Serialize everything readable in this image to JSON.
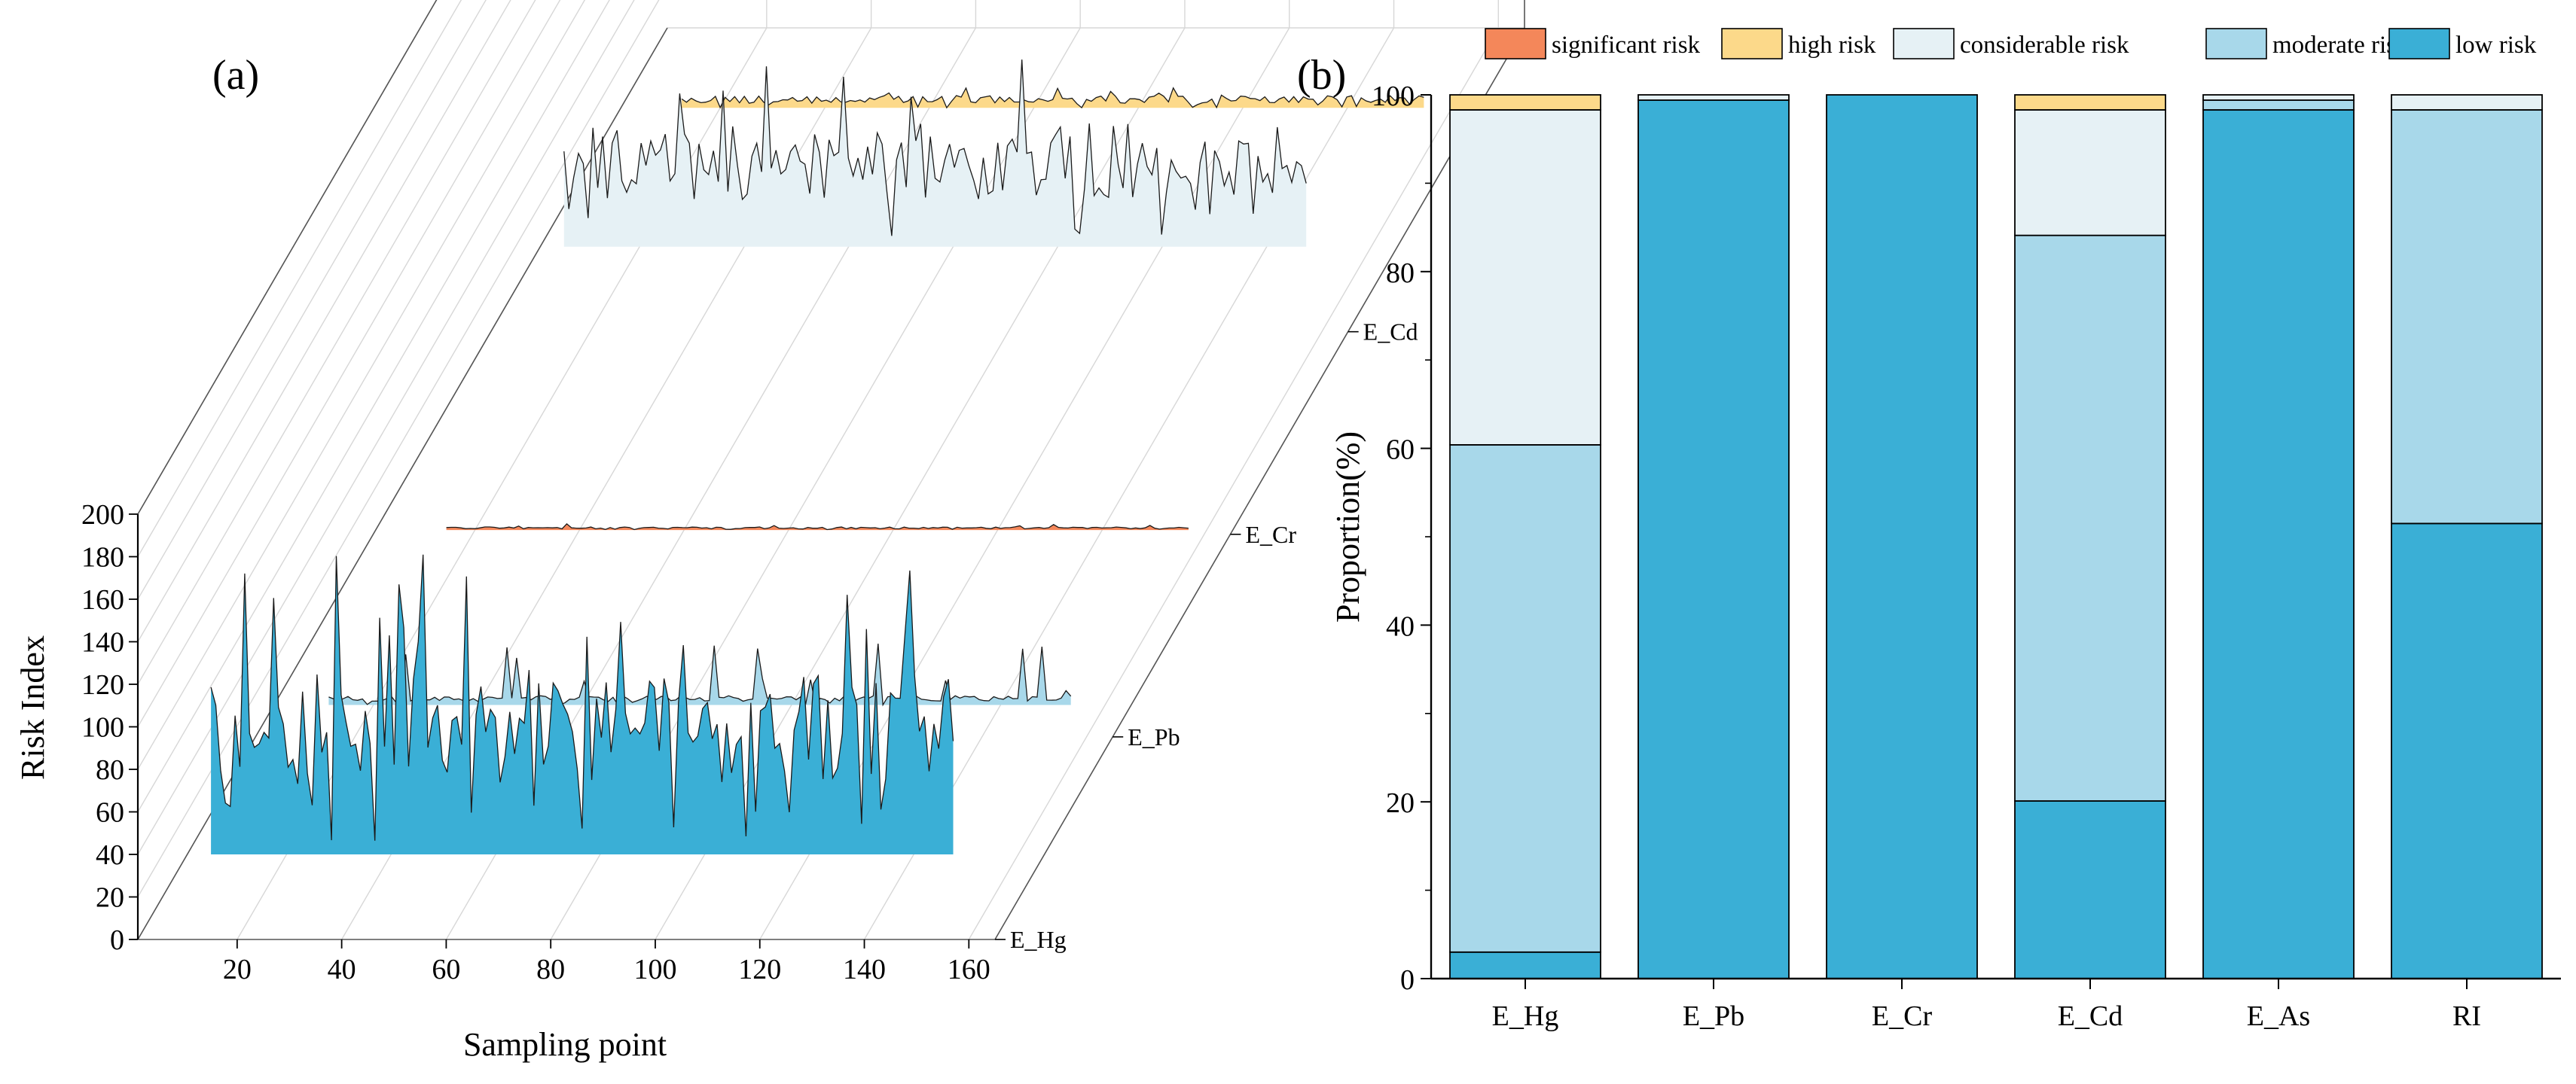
{
  "figure": {
    "panel_a_label": "(a)",
    "panel_b_label": "(b)"
  },
  "chart_data": [
    {
      "type": "area",
      "style": "3d-waterfall",
      "ylabel": "Risk Index",
      "xlabel": "Sampling point",
      "xticks": [
        20,
        40,
        60,
        80,
        100,
        120,
        140,
        160
      ],
      "yticks": [
        0,
        20,
        40,
        60,
        80,
        100,
        120,
        140,
        160,
        180,
        200
      ],
      "xlim": [
        1,
        165
      ],
      "ylim": [
        0,
        200
      ],
      "series": [
        {
          "name": "E_Hg",
          "color": "#3aafd6",
          "n": 155,
          "baseline": 40,
          "typical": 100,
          "max": 185
        },
        {
          "name": "E_Pb",
          "color": "#a8d8ea",
          "n": 155,
          "baseline": 15,
          "typical": 18,
          "max": 45
        },
        {
          "name": "E_Cr",
          "color": "#f4875a",
          "n": 155,
          "baseline": 2,
          "typical": 3,
          "max": 5
        },
        {
          "name": "E_Cd",
          "color": "#e6f1f5",
          "n": 155,
          "baseline": 40,
          "typical": 80,
          "max": 135
        },
        {
          "name": "E_As",
          "color": "#fcd98a",
          "n": 155,
          "baseline": 10,
          "typical": 14,
          "max": 20
        }
      ]
    },
    {
      "type": "bar",
      "stacked": true,
      "ylabel": "Proportion(%)",
      "ylim": [
        0,
        100
      ],
      "yticks": [
        0,
        20,
        40,
        60,
        80,
        100
      ],
      "categories": [
        "E_Hg",
        "E_Pb",
        "E_Cr",
        "E_Cd",
        "E_As",
        "RI"
      ],
      "legend": [
        "significant risk",
        "high risk",
        "considerable risk",
        "moderate risk",
        "low risk"
      ],
      "series": [
        {
          "name": "low risk",
          "color": "#3aafd6",
          "values": [
            3.0,
            99.4,
            100.0,
            20.1,
            98.3,
            51.5
          ]
        },
        {
          "name": "moderate risk",
          "color": "#a8d8ea",
          "values": [
            57.4,
            0.0,
            0.0,
            64.0,
            1.1,
            46.8
          ]
        },
        {
          "name": "considerable risk",
          "color": "#e6f1f5",
          "values": [
            37.9,
            0.6,
            0.0,
            14.2,
            0.6,
            1.7
          ]
        },
        {
          "name": "high risk",
          "color": "#fcd98a",
          "values": [
            1.7,
            0.0,
            0.0,
            1.7,
            0.0,
            0.0
          ]
        },
        {
          "name": "significant risk",
          "color": "#f4875a",
          "values": [
            0.0,
            0.0,
            0.0,
            0.0,
            0.0,
            0.0
          ]
        }
      ]
    }
  ]
}
